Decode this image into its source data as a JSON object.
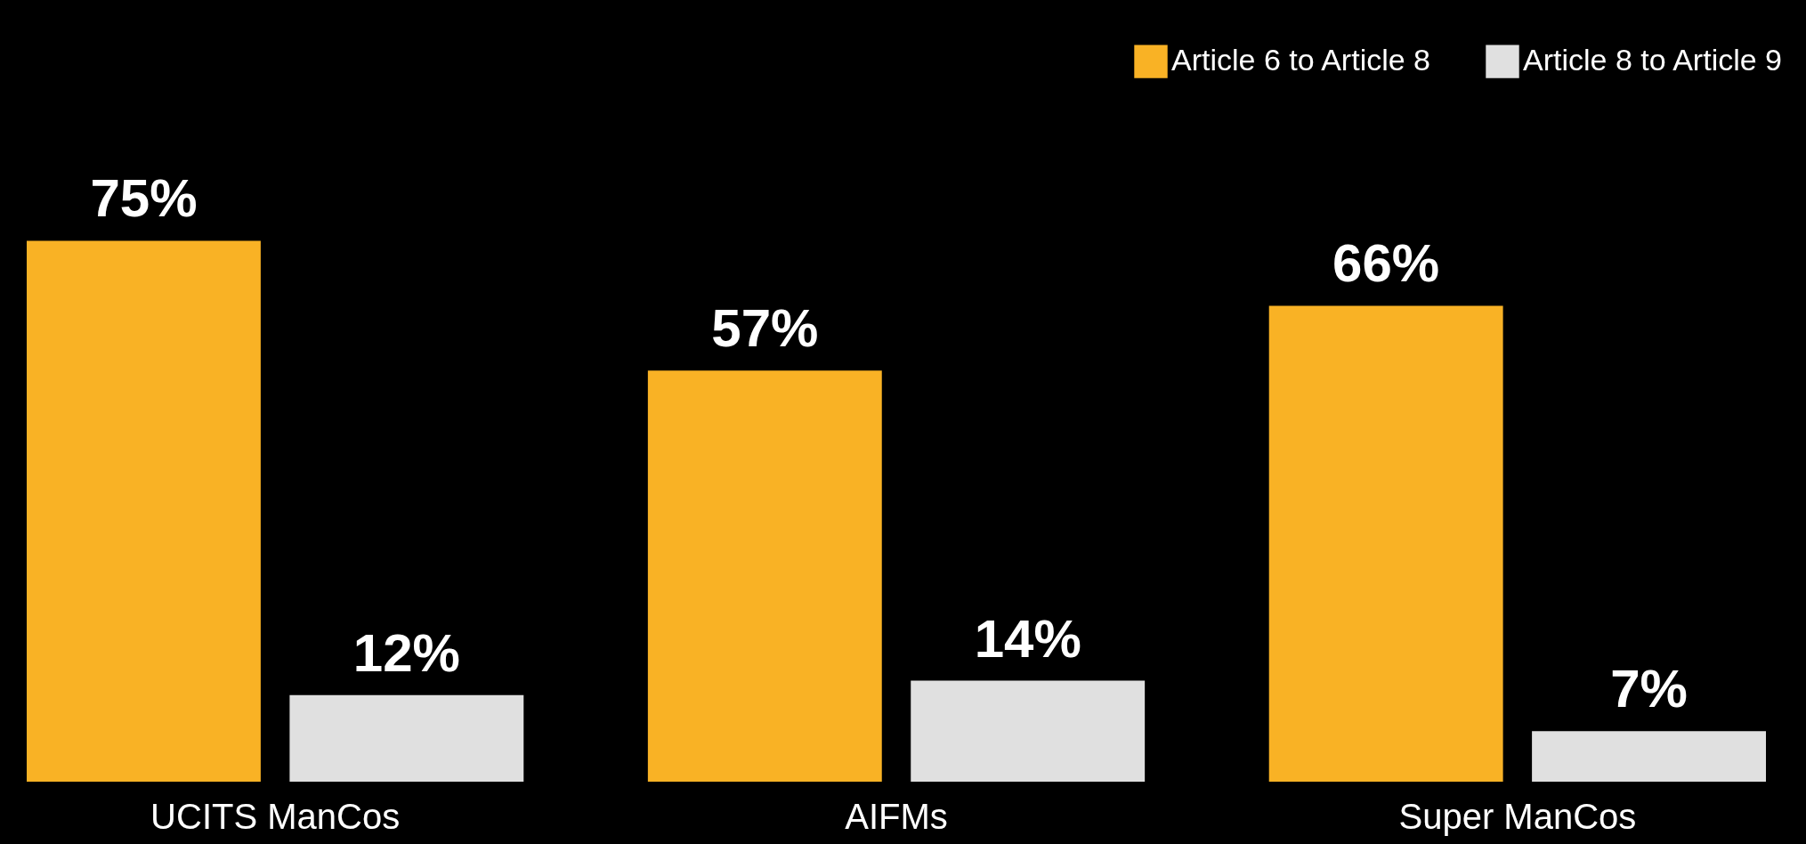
{
  "chart_data": {
    "type": "bar",
    "categories": [
      "UCITS ManCos",
      "AIFMs",
      "Super ManCos"
    ],
    "series": [
      {
        "name": "Article 6 to Article 8",
        "color": "#f9b225",
        "values": [
          75,
          57,
          66
        ],
        "value_labels": [
          "75%",
          "57%",
          "66%"
        ]
      },
      {
        "name": "Article 8 to Article 9",
        "color": "#e0e0e0",
        "values": [
          12,
          14,
          7
        ],
        "value_labels": [
          "12%",
          "14%",
          "7%"
        ]
      }
    ],
    "legend": "top right",
    "grid": false
  }
}
